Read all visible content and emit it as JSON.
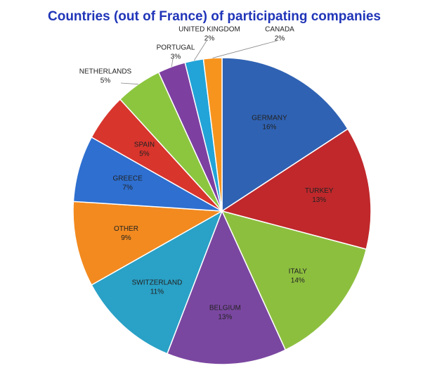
{
  "chart_data": {
    "type": "pie",
    "title": "Countries (out of France) of participating companies",
    "categories": [
      "GERMANY",
      "TURKEY",
      "ITALY",
      "BELGIUM",
      "SWITZERLAND",
      "OTHER",
      "GREECE",
      "SPAIN",
      "NETHERLANDS",
      "PORTUGAL",
      "UNITED KINGDOM",
      "CANADA"
    ],
    "values": [
      16,
      13,
      14,
      13,
      11,
      9,
      7,
      5,
      5,
      3,
      2,
      2
    ],
    "value_labels": [
      "16%",
      "13%",
      "14%",
      "13%",
      "11%",
      "9%",
      "7%",
      "5%",
      "5%",
      "3%",
      "2%",
      "2%"
    ],
    "colors": [
      "#2f62b3",
      "#c0282b",
      "#8dbf3f",
      "#7a47a0",
      "#2aa1c6",
      "#f28a1f",
      "#2e6fd0",
      "#d8352d",
      "#8cc63f",
      "#7d40a1",
      "#22a4d8",
      "#f7941d"
    ]
  }
}
